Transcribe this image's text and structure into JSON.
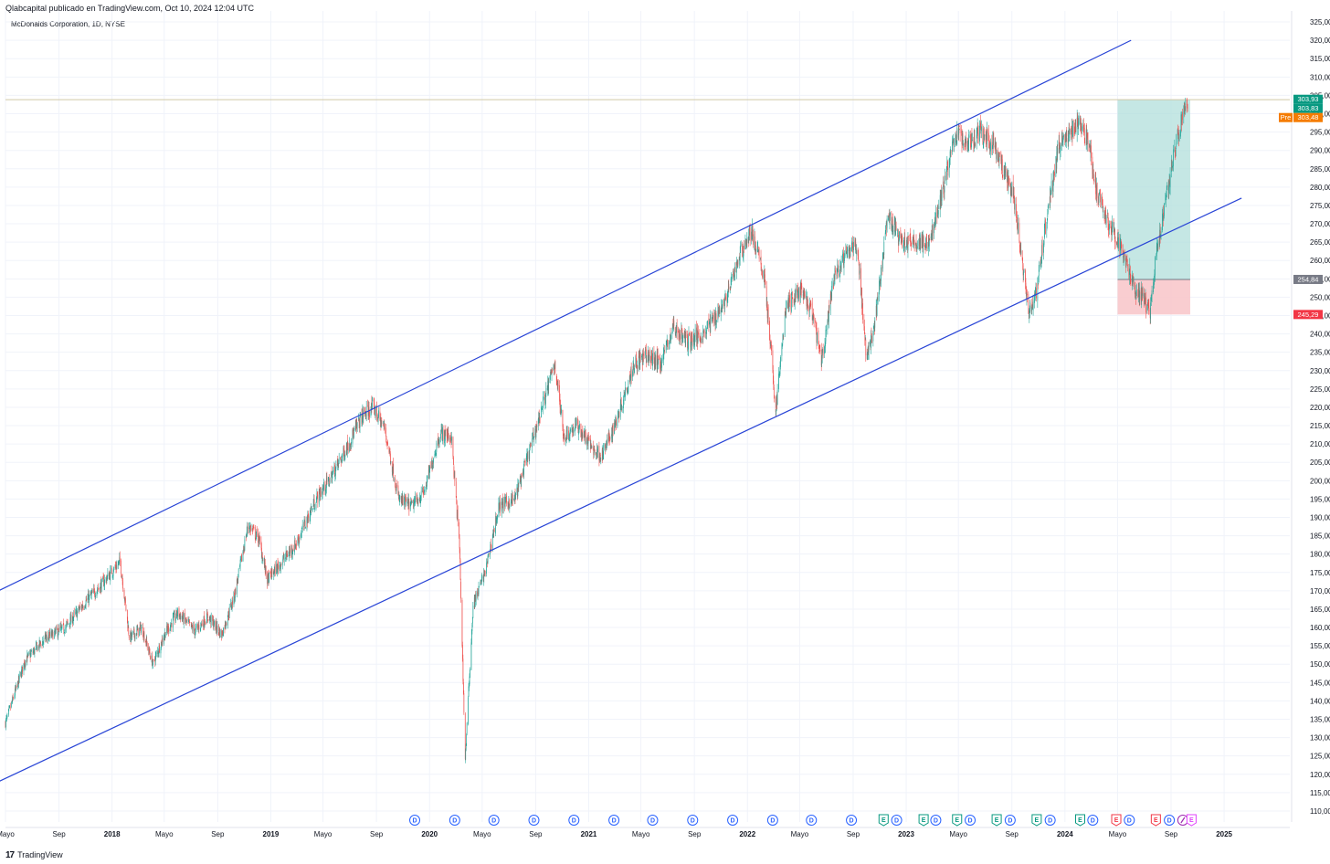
{
  "header": {
    "published_by": "Qlabcapital publicado en TradingView.com, Oct 10, 2024 12:04 UTC",
    "symbol": "McDonalds Corporation, 1D, NYSE"
  },
  "footer": {
    "logo_mark": "17",
    "brand": "TradingView"
  },
  "colors": {
    "up": "#26a69a",
    "down": "#ef5350",
    "channel": "#2945d6",
    "profit_zone": "#b2dfdb",
    "loss_zone": "#f8c4c8",
    "badge_current": "#089981",
    "badge_pre": "#f57c00",
    "badge_entry": "#787b86",
    "badge_stop": "#f23645",
    "grid": "#f0f3fa"
  },
  "chart_data": {
    "type": "candlestick",
    "symbol": "McDonalds Corporation",
    "interval": "1D",
    "exchange": "NYSE",
    "ylim": [
      107,
      328
    ],
    "xlim": [
      "2017-05-01",
      "2025-06-01"
    ],
    "y_ticks": [
      "110,00",
      "115,00",
      "120,00",
      "125,00",
      "130,00",
      "135,00",
      "140,00",
      "145,00",
      "150,00",
      "155,00",
      "160,00",
      "165,00",
      "170,00",
      "175,00",
      "180,00",
      "185,00",
      "190,00",
      "195,00",
      "200,00",
      "205,00",
      "210,00",
      "215,00",
      "220,00",
      "225,00",
      "230,00",
      "235,00",
      "240,00",
      "245,00",
      "250,00",
      "255,00",
      "260,00",
      "265,00",
      "270,00",
      "275,00",
      "280,00",
      "285,00",
      "290,00",
      "295,00",
      "300,00",
      "305,00",
      "310,00",
      "315,00",
      "320,00",
      "325,00"
    ],
    "x_ticks": [
      {
        "date": "2017-05-01",
        "label": "Mayo",
        "bold": false
      },
      {
        "date": "2017-09-01",
        "label": "Sep",
        "bold": false
      },
      {
        "date": "2018-01-01",
        "label": "2018",
        "bold": true
      },
      {
        "date": "2018-05-01",
        "label": "Mayo",
        "bold": false
      },
      {
        "date": "2018-09-01",
        "label": "Sep",
        "bold": false
      },
      {
        "date": "2019-01-01",
        "label": "2019",
        "bold": true
      },
      {
        "date": "2019-05-01",
        "label": "Mayo",
        "bold": false
      },
      {
        "date": "2019-09-01",
        "label": "Sep",
        "bold": false
      },
      {
        "date": "2020-01-01",
        "label": "2020",
        "bold": true
      },
      {
        "date": "2020-05-01",
        "label": "Mayo",
        "bold": false
      },
      {
        "date": "2020-09-01",
        "label": "Sep",
        "bold": false
      },
      {
        "date": "2021-01-01",
        "label": "2021",
        "bold": true
      },
      {
        "date": "2021-05-01",
        "label": "Mayo",
        "bold": false
      },
      {
        "date": "2021-09-01",
        "label": "Sep",
        "bold": false
      },
      {
        "date": "2022-01-01",
        "label": "2022",
        "bold": true
      },
      {
        "date": "2022-05-01",
        "label": "Mayo",
        "bold": false
      },
      {
        "date": "2022-09-01",
        "label": "Sep",
        "bold": false
      },
      {
        "date": "2023-01-01",
        "label": "2023",
        "bold": true
      },
      {
        "date": "2023-05-01",
        "label": "Mayo",
        "bold": false
      },
      {
        "date": "2023-09-01",
        "label": "Sep",
        "bold": false
      },
      {
        "date": "2024-01-01",
        "label": "2024",
        "bold": true
      },
      {
        "date": "2024-05-01",
        "label": "Mayo",
        "bold": false
      },
      {
        "date": "2024-09-01",
        "label": "Sep",
        "bold": false
      },
      {
        "date": "2025-01-01",
        "label": "2025",
        "bold": true
      }
    ],
    "price_path": [
      [
        "2017-05-01",
        134
      ],
      [
        "2017-06-15",
        151
      ],
      [
        "2017-08-01",
        157
      ],
      [
        "2017-09-15",
        160
      ],
      [
        "2017-11-01",
        167
      ],
      [
        "2017-12-10",
        172
      ],
      [
        "2018-01-20",
        178
      ],
      [
        "2018-02-10",
        157
      ],
      [
        "2018-03-10",
        160
      ],
      [
        "2018-04-05",
        150
      ],
      [
        "2018-05-01",
        158
      ],
      [
        "2018-06-01",
        164
      ],
      [
        "2018-07-10",
        159
      ],
      [
        "2018-08-10",
        163
      ],
      [
        "2018-09-10",
        158
      ],
      [
        "2018-10-10",
        169
      ],
      [
        "2018-11-10",
        188
      ],
      [
        "2018-12-05",
        184
      ],
      [
        "2018-12-24",
        173
      ],
      [
        "2019-01-20",
        177
      ],
      [
        "2019-03-01",
        183
      ],
      [
        "2019-04-15",
        195
      ],
      [
        "2019-05-15",
        200
      ],
      [
        "2019-06-20",
        208
      ],
      [
        "2019-08-01",
        218
      ],
      [
        "2019-08-25",
        220
      ],
      [
        "2019-09-20",
        214
      ],
      [
        "2019-10-22",
        195
      ],
      [
        "2019-11-20",
        193
      ],
      [
        "2019-12-20",
        197
      ],
      [
        "2020-01-25",
        213
      ],
      [
        "2020-02-20",
        212
      ],
      [
        "2020-03-10",
        182
      ],
      [
        "2020-03-23",
        124
      ],
      [
        "2020-04-10",
        166
      ],
      [
        "2020-05-10",
        176
      ],
      [
        "2020-06-08",
        193
      ],
      [
        "2020-07-15",
        195
      ],
      [
        "2020-08-15",
        207
      ],
      [
        "2020-09-25",
        224
      ],
      [
        "2020-10-15",
        232
      ],
      [
        "2020-11-05",
        212
      ],
      [
        "2020-12-05",
        215
      ],
      [
        "2021-01-15",
        208
      ],
      [
        "2021-02-01",
        207
      ],
      [
        "2021-03-01",
        215
      ],
      [
        "2021-04-15",
        232
      ],
      [
        "2021-05-15",
        234
      ],
      [
        "2021-06-15",
        232
      ],
      [
        "2021-07-15",
        242
      ],
      [
        "2021-08-15",
        238
      ],
      [
        "2021-09-20",
        240
      ],
      [
        "2021-10-20",
        245
      ],
      [
        "2021-11-15",
        250
      ],
      [
        "2021-12-15",
        262
      ],
      [
        "2022-01-10",
        268
      ],
      [
        "2022-02-10",
        255
      ],
      [
        "2022-03-07",
        219
      ],
      [
        "2022-03-30",
        247
      ],
      [
        "2022-05-01",
        252
      ],
      [
        "2022-06-01",
        245
      ],
      [
        "2022-06-20",
        232
      ],
      [
        "2022-07-20",
        256
      ],
      [
        "2022-08-20",
        262
      ],
      [
        "2022-09-10",
        265
      ],
      [
        "2022-10-01",
        234
      ],
      [
        "2022-10-20",
        242
      ],
      [
        "2022-11-20",
        272
      ],
      [
        "2022-12-20",
        265
      ],
      [
        "2023-01-20",
        265
      ],
      [
        "2023-02-20",
        264
      ],
      [
        "2023-03-20",
        276
      ],
      [
        "2023-04-25",
        295
      ],
      [
        "2023-05-20",
        292
      ],
      [
        "2023-06-20",
        295
      ],
      [
        "2023-07-20",
        292
      ],
      [
        "2023-08-10",
        285
      ],
      [
        "2023-09-05",
        278
      ],
      [
        "2023-10-10",
        246
      ],
      [
        "2023-10-28",
        252
      ],
      [
        "2023-11-20",
        272
      ],
      [
        "2023-12-20",
        292
      ],
      [
        "2024-01-15",
        295
      ],
      [
        "2024-02-05",
        298
      ],
      [
        "2024-02-25",
        292
      ],
      [
        "2024-03-15",
        278
      ],
      [
        "2024-04-10",
        270
      ],
      [
        "2024-04-25",
        267
      ],
      [
        "2024-05-15",
        262
      ],
      [
        "2024-06-10",
        252
      ],
      [
        "2024-06-25",
        251
      ],
      [
        "2024-07-15",
        245
      ],
      [
        "2024-07-25",
        258
      ],
      [
        "2024-08-10",
        270
      ],
      [
        "2024-08-25",
        281
      ],
      [
        "2024-09-10",
        290
      ],
      [
        "2024-09-25",
        298
      ],
      [
        "2024-10-09",
        303.83
      ]
    ],
    "annotations": {
      "channel_upper": {
        "points": [
          [
            "2017-04-15",
            170
          ],
          [
            "2024-06-01",
            320
          ]
        ]
      },
      "channel_lower": {
        "points": [
          [
            "2017-04-15",
            118
          ],
          [
            "2025-02-10",
            277
          ]
        ]
      },
      "position": {
        "start": "2024-05-01",
        "end": "2024-10-15",
        "entry": 254.84,
        "target": 303.83,
        "stop": 245.29
      },
      "current_line": 303.83
    },
    "price_labels": [
      {
        "value": 303.93,
        "text": "303,93",
        "kind": "current"
      },
      {
        "value": 303.83,
        "text": "303,83",
        "kind": "current"
      },
      {
        "value": 303.48,
        "text": "303,48",
        "kind": "pre",
        "prefix": "Pre"
      },
      {
        "value": 254.84,
        "text": "254,84",
        "kind": "entry"
      },
      {
        "value": 245.29,
        "text": "245,29",
        "kind": "stop"
      }
    ],
    "events": [
      {
        "date": "2019-11-28",
        "type": "D"
      },
      {
        "date": "2020-02-28",
        "type": "D"
      },
      {
        "date": "2020-05-28",
        "type": "D"
      },
      {
        "date": "2020-08-28",
        "type": "D"
      },
      {
        "date": "2020-11-28",
        "type": "D"
      },
      {
        "date": "2021-02-28",
        "type": "D"
      },
      {
        "date": "2021-05-28",
        "type": "D"
      },
      {
        "date": "2021-08-28",
        "type": "D"
      },
      {
        "date": "2021-11-28",
        "type": "D"
      },
      {
        "date": "2022-02-28",
        "type": "D"
      },
      {
        "date": "2022-05-28",
        "type": "D"
      },
      {
        "date": "2022-08-28",
        "type": "D"
      },
      {
        "date": "2022-11-10",
        "type": "E"
      },
      {
        "date": "2022-12-10",
        "type": "D"
      },
      {
        "date": "2023-02-10",
        "type": "E"
      },
      {
        "date": "2023-03-10",
        "type": "D"
      },
      {
        "date": "2023-04-28",
        "type": "E"
      },
      {
        "date": "2023-05-28",
        "type": "D"
      },
      {
        "date": "2023-07-28",
        "type": "E"
      },
      {
        "date": "2023-08-28",
        "type": "D"
      },
      {
        "date": "2023-10-28",
        "type": "E"
      },
      {
        "date": "2023-11-28",
        "type": "D"
      },
      {
        "date": "2024-02-05",
        "type": "E"
      },
      {
        "date": "2024-03-05",
        "type": "D"
      },
      {
        "date": "2024-04-28",
        "type": "E-neg"
      },
      {
        "date": "2024-05-28",
        "type": "D"
      },
      {
        "date": "2024-07-28",
        "type": "E-neg"
      },
      {
        "date": "2024-08-28",
        "type": "D"
      },
      {
        "date": "2024-09-28",
        "type": "split"
      },
      {
        "date": "2024-10-18",
        "type": "E-up"
      }
    ]
  }
}
